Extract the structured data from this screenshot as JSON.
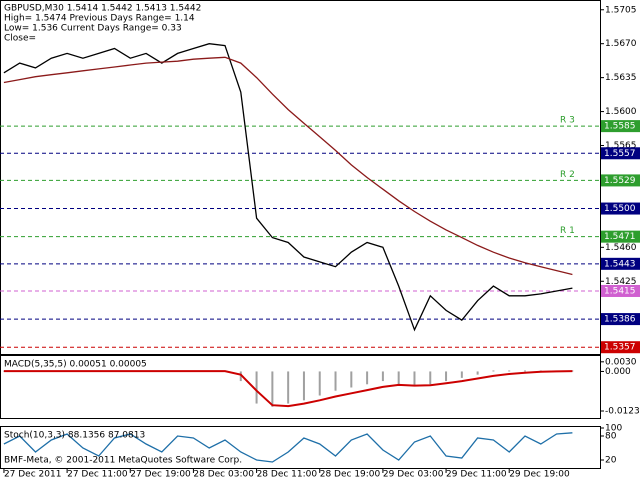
{
  "chart_data": [
    {
      "type": "line",
      "header": [
        "GBPUSD,M30  1.5414 1.5442 1.5413 1.5442",
        "High= 1.5474    Previous Days Range= 1.14",
        "Low= 1.536    Current Days Range= 0.33",
        "Close="
      ],
      "x": [
        0,
        4,
        8,
        12,
        16,
        20,
        24,
        28,
        32,
        36,
        40,
        44,
        48,
        52,
        56,
        60,
        64,
        68,
        72,
        76,
        80,
        84,
        88,
        92,
        96,
        100,
        104,
        108,
        112,
        116,
        120,
        124,
        128,
        132,
        136,
        140,
        144
      ],
      "xlim": [
        -1,
        151
      ],
      "xticks": [
        {
          "value": 0,
          "label": "27 Dec 2011"
        },
        {
          "value": 16,
          "label": "27 Dec 11:00"
        },
        {
          "value": 32,
          "label": "27 Dec 19:00"
        },
        {
          "value": 48,
          "label": "28 Dec 03:00"
        },
        {
          "value": 64,
          "label": "28 Dec 11:00"
        },
        {
          "value": 80,
          "label": "28 Dec 19:00"
        },
        {
          "value": 96,
          "label": "29 Dec 03:00"
        },
        {
          "value": 112,
          "label": "29 Dec 11:00"
        },
        {
          "value": 128,
          "label": "29 Dec 19:00"
        }
      ],
      "ylim": [
        1.535,
        1.5713
      ],
      "yticks": [
        1.5705,
        {
          "value": 1.567,
          "label": "1.5670"
        },
        1.5635,
        {
          "value": 1.56,
          "label": "1.5600"
        },
        1.5565,
        {
          "value": 1.546,
          "label": "1.5460"
        },
        1.5425
      ],
      "series": [
        {
          "color": "#000000",
          "values": [
            1.564,
            1.565,
            1.5645,
            1.5655,
            1.566,
            1.5655,
            1.566,
            1.5665,
            1.5655,
            1.566,
            1.565,
            1.566,
            1.5665,
            1.567,
            1.5668,
            1.562,
            1.549,
            1.547,
            1.5465,
            1.545,
            1.5445,
            1.544,
            1.5455,
            1.5465,
            1.546,
            1.542,
            1.5375,
            1.541,
            1.5395,
            1.5385,
            1.5405,
            1.542,
            1.541,
            1.541,
            1.5412,
            1.5415,
            1.5418
          ]
        },
        {
          "color": "#8b1a1a",
          "values": [
            1.563,
            1.5633,
            1.5636,
            1.5638,
            1.564,
            1.5642,
            1.5644,
            1.5646,
            1.5648,
            1.565,
            1.5651,
            1.5652,
            1.5654,
            1.5655,
            1.5656,
            1.565,
            1.5635,
            1.5618,
            1.5602,
            1.5588,
            1.5574,
            1.556,
            1.5545,
            1.5532,
            1.552,
            1.5508,
            1.5497,
            1.5487,
            1.5478,
            1.547,
            1.5462,
            1.5455,
            1.5449,
            1.5444,
            1.544,
            1.5436,
            1.5432
          ]
        }
      ],
      "levels": [
        {
          "value": 1.5585,
          "color": "#2e9e2e",
          "tag": "R 3"
        },
        {
          "value": 1.5557,
          "color": "#000080"
        },
        {
          "value": 1.5529,
          "color": "#2e9e2e",
          "tag": "R 2"
        },
        {
          "value": 1.55,
          "label": "1.5500",
          "color": "#000080"
        },
        {
          "value": 1.5471,
          "color": "#2e9e2e",
          "tag": "R 1"
        },
        {
          "value": 1.5443,
          "color": "#000080"
        },
        {
          "value": 1.5415,
          "color": "#d060d0"
        },
        {
          "value": 1.5386,
          "color": "#000080"
        },
        {
          "value": 1.5357,
          "color": "#cc0000"
        }
      ]
    },
    {
      "type": "bar",
      "title": "MACD(5,35,5) 0.00051 0.00005",
      "x": [
        0,
        4,
        8,
        12,
        16,
        20,
        24,
        28,
        32,
        36,
        40,
        44,
        48,
        52,
        56,
        60,
        64,
        68,
        72,
        76,
        80,
        84,
        88,
        92,
        96,
        100,
        104,
        108,
        112,
        116,
        120,
        124,
        128,
        132,
        136,
        140,
        144
      ],
      "ylim": [
        -0.0145,
        0.0045
      ],
      "yticks": [
        {
          "value": 0.003,
          "label": "0.0030"
        },
        {
          "value": 0,
          "label": "0.000"
        },
        -0.01232
      ],
      "series": [
        {
          "color": "#a0a0a0",
          "values": [
            0.0002,
            0.0002,
            0.0002,
            0.0002,
            0.0002,
            0.0002,
            0.0002,
            0.0002,
            0.0002,
            0.0002,
            0.0002,
            0.0002,
            0.0002,
            0.0002,
            0.0002,
            -0.003,
            -0.01,
            -0.011,
            -0.01,
            -0.009,
            -0.0075,
            -0.006,
            -0.005,
            -0.004,
            -0.003,
            -0.004,
            -0.0045,
            -0.004,
            -0.003,
            -0.002,
            -0.001,
            0.0003,
            0.0003,
            0.0003,
            0.0003,
            0.0003,
            0.0003
          ]
        },
        {
          "type": "line",
          "color": "#cc0000",
          "values": [
            0.0001,
            0.0001,
            0.0001,
            0.0001,
            0.0001,
            0.0001,
            0.0001,
            0.0001,
            0.0001,
            0.0001,
            0.0001,
            0.0001,
            0.0001,
            0.0001,
            0.0001,
            -0.001,
            -0.006,
            -0.0105,
            -0.0108,
            -0.01,
            -0.009,
            -0.0078,
            -0.0068,
            -0.0058,
            -0.0048,
            -0.0042,
            -0.0044,
            -0.0043,
            -0.0037,
            -0.003,
            -0.0022,
            -0.0014,
            -0.0008,
            -0.0004,
            -0.0001,
            0,
            0.0001
          ]
        }
      ]
    },
    {
      "type": "line",
      "title": "Stoch(10,3,3) 88.1356 87.0813",
      "footer": "BMF-Meta, © 2001-2011 MetaQuotes Software Corp.",
      "x": [
        0,
        4,
        8,
        12,
        16,
        20,
        24,
        28,
        32,
        36,
        40,
        44,
        48,
        52,
        56,
        60,
        64,
        68,
        72,
        76,
        80,
        84,
        88,
        92,
        96,
        100,
        104,
        108,
        112,
        116,
        120,
        124,
        128,
        132,
        136,
        140,
        144
      ],
      "ylim": [
        0,
        100
      ],
      "yticks": [
        100,
        80,
        20
      ],
      "series": [
        {
          "color": "#1e6fa8",
          "values": [
            60,
            80,
            40,
            70,
            85,
            50,
            30,
            75,
            85,
            60,
            40,
            80,
            75,
            50,
            70,
            40,
            20,
            15,
            40,
            75,
            60,
            30,
            70,
            85,
            45,
            20,
            65,
            80,
            30,
            25,
            75,
            70,
            40,
            80,
            60,
            85,
            88
          ]
        }
      ]
    }
  ]
}
